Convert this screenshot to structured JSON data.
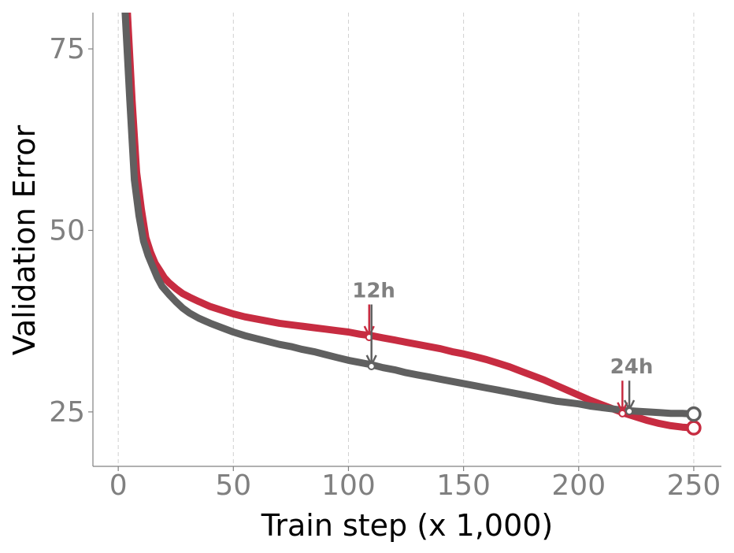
{
  "chart_data": {
    "type": "line",
    "xlabel": "Train step (x 1,000)",
    "ylabel": "Validation Error",
    "xlim": [
      -11,
      262
    ],
    "ylim": [
      17.5,
      80
    ],
    "xticks": [
      0,
      50,
      100,
      150,
      200,
      250
    ],
    "yticks": [
      25,
      50,
      75
    ],
    "x_tick_labels": [
      "0",
      "50",
      "100",
      "150",
      "200",
      "250"
    ],
    "y_tick_labels": [
      "25",
      "50",
      "75"
    ],
    "grid": "vertical dashed at x ticks",
    "legend": "none",
    "series": [
      {
        "color": "#c72c41",
        "points": [
          [
            4,
            80
          ],
          [
            6,
            68
          ],
          [
            8,
            58
          ],
          [
            10,
            53
          ],
          [
            12,
            49
          ],
          [
            14,
            47
          ],
          [
            16,
            45.5
          ],
          [
            18,
            44.5
          ],
          [
            20,
            43.5
          ],
          [
            22,
            42.8
          ],
          [
            25,
            42
          ],
          [
            28,
            41.3
          ],
          [
            31,
            40.8
          ],
          [
            35,
            40.2
          ],
          [
            40,
            39.5
          ],
          [
            45,
            39
          ],
          [
            50,
            38.5
          ],
          [
            55,
            38.1
          ],
          [
            60,
            37.8
          ],
          [
            65,
            37.5
          ],
          [
            70,
            37.2
          ],
          [
            75,
            37
          ],
          [
            80,
            36.8
          ],
          [
            85,
            36.6
          ],
          [
            90,
            36.4
          ],
          [
            95,
            36.2
          ],
          [
            100,
            36
          ],
          [
            105,
            35.7
          ],
          [
            110,
            35.5
          ],
          [
            115,
            35.2
          ],
          [
            120,
            34.9
          ],
          [
            125,
            34.6
          ],
          [
            130,
            34.3
          ],
          [
            135,
            34
          ],
          [
            140,
            33.7
          ],
          [
            145,
            33.3
          ],
          [
            150,
            33
          ],
          [
            155,
            32.6
          ],
          [
            160,
            32.2
          ],
          [
            165,
            31.7
          ],
          [
            170,
            31.2
          ],
          [
            175,
            30.6
          ],
          [
            180,
            30
          ],
          [
            185,
            29.4
          ],
          [
            190,
            28.7
          ],
          [
            195,
            28
          ],
          [
            200,
            27.3
          ],
          [
            205,
            26.6
          ],
          [
            210,
            26
          ],
          [
            215,
            25.4
          ],
          [
            220,
            24.8
          ],
          [
            225,
            24.3
          ],
          [
            230,
            23.8
          ],
          [
            235,
            23.4
          ],
          [
            240,
            23.1
          ],
          [
            245,
            22.9
          ],
          [
            250,
            22.8
          ]
        ]
      },
      {
        "color": "#606060",
        "points": [
          [
            3,
            80
          ],
          [
            5,
            68
          ],
          [
            7,
            57
          ],
          [
            9,
            52
          ],
          [
            11,
            48.5
          ],
          [
            13,
            46.5
          ],
          [
            15,
            45
          ],
          [
            17,
            43.5
          ],
          [
            19,
            42.3
          ],
          [
            22,
            41.2
          ],
          [
            25,
            40.2
          ],
          [
            28,
            39.3
          ],
          [
            31,
            38.6
          ],
          [
            35,
            37.9
          ],
          [
            40,
            37.2
          ],
          [
            45,
            36.6
          ],
          [
            50,
            36
          ],
          [
            55,
            35.5
          ],
          [
            60,
            35.1
          ],
          [
            65,
            34.7
          ],
          [
            70,
            34.3
          ],
          [
            75,
            34
          ],
          [
            80,
            33.6
          ],
          [
            85,
            33.3
          ],
          [
            90,
            32.9
          ],
          [
            95,
            32.5
          ],
          [
            100,
            32.1
          ],
          [
            105,
            31.8
          ],
          [
            110,
            31.5
          ],
          [
            115,
            31.1
          ],
          [
            120,
            30.8
          ],
          [
            125,
            30.4
          ],
          [
            130,
            30.1
          ],
          [
            135,
            29.8
          ],
          [
            140,
            29.5
          ],
          [
            145,
            29.2
          ],
          [
            150,
            28.9
          ],
          [
            155,
            28.6
          ],
          [
            160,
            28.3
          ],
          [
            165,
            28
          ],
          [
            170,
            27.7
          ],
          [
            175,
            27.4
          ],
          [
            180,
            27.1
          ],
          [
            185,
            26.8
          ],
          [
            190,
            26.5
          ],
          [
            195,
            26.3
          ],
          [
            200,
            26.1
          ],
          [
            205,
            25.8
          ],
          [
            210,
            25.6
          ],
          [
            215,
            25.4
          ],
          [
            220,
            25.2
          ],
          [
            225,
            25.1
          ],
          [
            230,
            25
          ],
          [
            235,
            24.9
          ],
          [
            240,
            24.8
          ],
          [
            245,
            24.8
          ],
          [
            250,
            24.7
          ]
        ]
      }
    ],
    "end_markers": [
      {
        "x": 250,
        "y": 22.8,
        "color": "#c72c41"
      },
      {
        "x": 250,
        "y": 24.7,
        "color": "#606060"
      }
    ],
    "annotations": [
      {
        "text": "12h",
        "text_x": 111,
        "text_y": 40.8,
        "arrows": [
          {
            "x": 109,
            "y_top": 39.8,
            "y_tip": 35.5,
            "color": "#c72c41"
          },
          {
            "x": 110,
            "y_top": 39.8,
            "y_tip": 31.5,
            "color": "#606060"
          }
        ]
      },
      {
        "text": "24h",
        "text_x": 223,
        "text_y": 30.3,
        "arrows": [
          {
            "x": 219,
            "y_top": 29.3,
            "y_tip": 25.0,
            "color": "#c72c41"
          },
          {
            "x": 222,
            "y_top": 29.3,
            "y_tip": 25.3,
            "color": "#606060"
          }
        ]
      }
    ]
  }
}
